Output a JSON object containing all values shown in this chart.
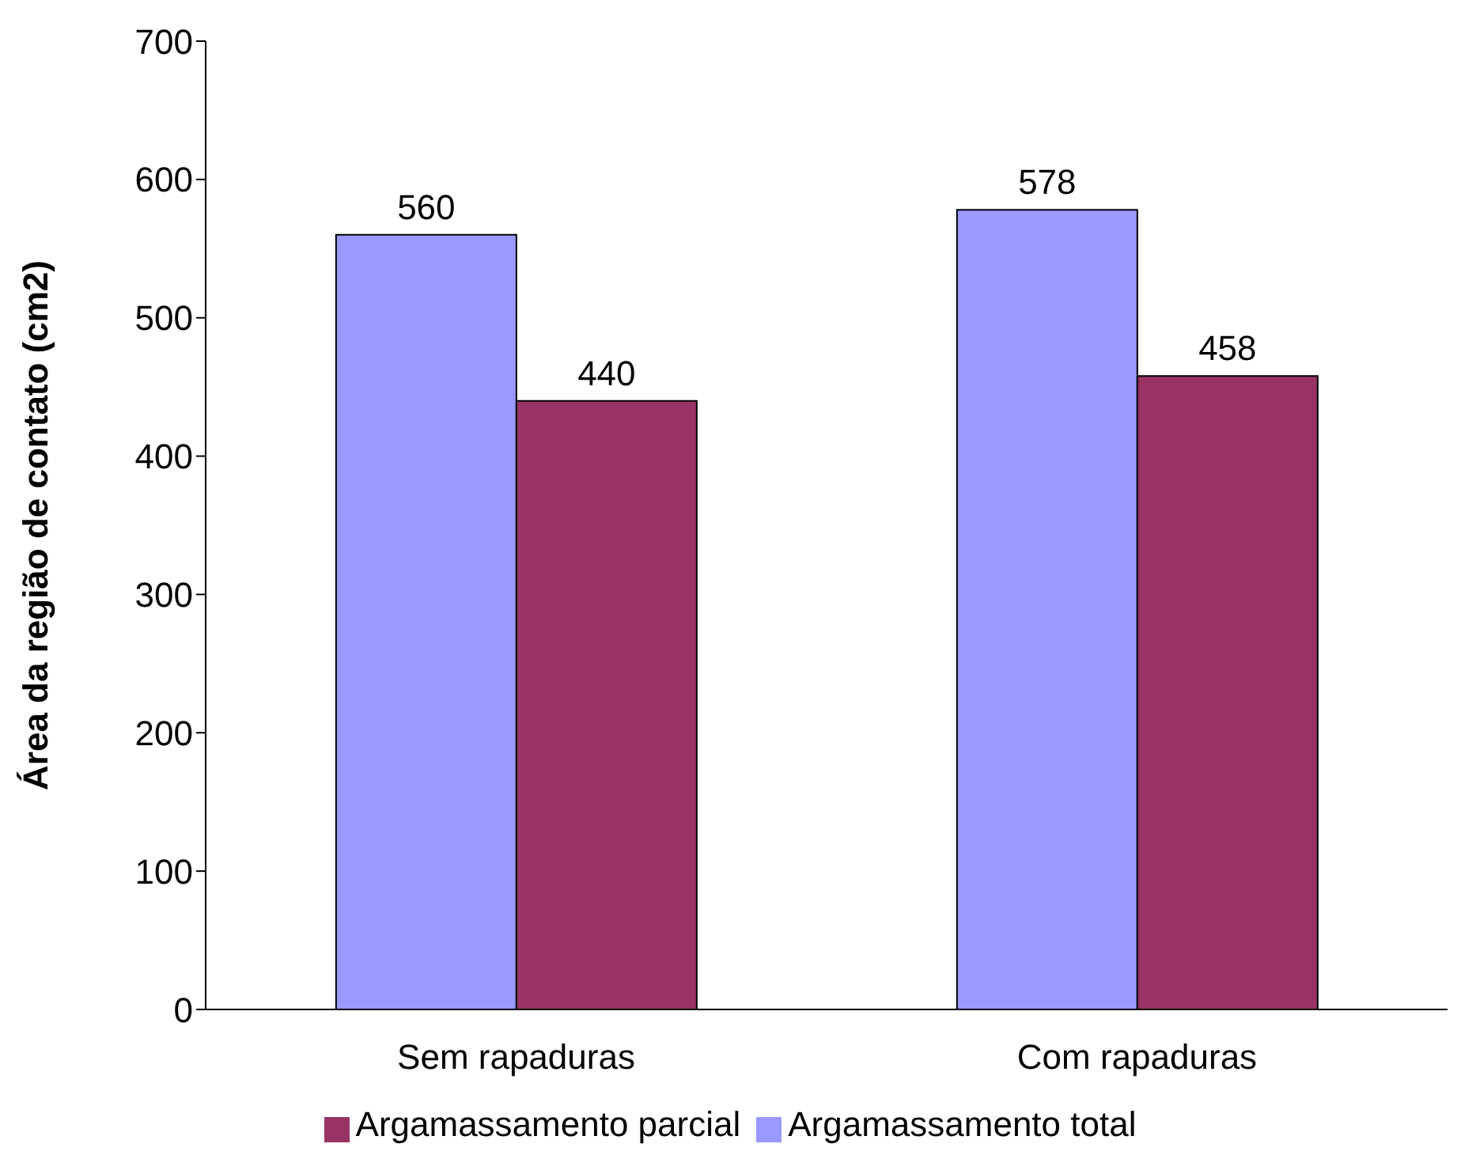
{
  "chart_data": {
    "type": "bar",
    "ylabel": "Área da região de contato (cm2)",
    "categories": [
      "Sem rapaduras",
      "Com rapaduras"
    ],
    "series": [
      {
        "name": "Argamassamento total",
        "color": "#9999ff",
        "values": [
          560,
          578
        ]
      },
      {
        "name": "Argamassamento parcial",
        "color": "#993366",
        "values": [
          440,
          458
        ]
      }
    ],
    "ylim": [
      0,
      700
    ],
    "yticks": [
      0,
      100,
      200,
      300,
      400,
      500,
      600,
      700
    ],
    "grid": false,
    "legend": "bottom",
    "data_labels": true
  }
}
